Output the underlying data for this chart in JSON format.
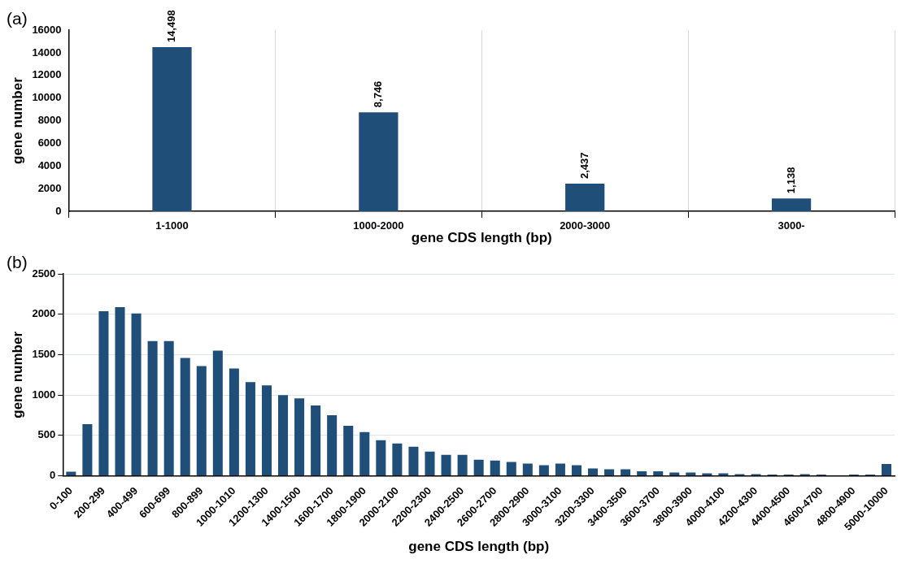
{
  "chart_data": [
    {
      "type": "bar",
      "title": "(a)",
      "xlabel": "gene CDS length (bp)",
      "ylabel": "gene number",
      "categories": [
        "1-1000",
        "1000-2000",
        "2000-3000",
        "3000-"
      ],
      "series": [
        {
          "color": "#1f4e79",
          "values": [
            14498,
            8746,
            2437,
            1138
          ],
          "value_labels": [
            "14,498",
            "8,746",
            "2,437",
            "1,138"
          ]
        }
      ],
      "ylim": [
        0,
        16000
      ],
      "yticks": [
        0,
        2000,
        4000,
        6000,
        8000,
        10000,
        12000,
        14000,
        16000
      ],
      "grid": "x",
      "legend": false
    },
    {
      "type": "bar",
      "title": "(b)",
      "xlabel": "gene CDS length (bp)",
      "ylabel": "gene number",
      "categories": [
        "0-100",
        null,
        "200-299",
        null,
        "400-499",
        null,
        "600-699",
        null,
        "800-899",
        null,
        "1000-1010",
        null,
        "1200-1300",
        null,
        "1400-1500",
        null,
        "1600-1700",
        null,
        "1800-1900",
        null,
        "2000-2100",
        null,
        "2200-2300",
        null,
        "2400-2500",
        null,
        "2600-2700",
        null,
        "2800-2900",
        null,
        "3000-3100",
        null,
        "3200-3300",
        null,
        "3400-3500",
        null,
        "3600-3700",
        null,
        "3800-3900",
        null,
        "4000-4100",
        null,
        "4200-4300",
        null,
        "4400-4500",
        null,
        "4600-4700",
        null,
        "4800-4900",
        null,
        "5000-10000"
      ],
      "series": [
        {
          "color": "#1f4e79",
          "values": [
            50,
            640,
            2040,
            2090,
            2010,
            1670,
            1670,
            1460,
            1360,
            1550,
            1330,
            1160,
            1120,
            1000,
            960,
            870,
            750,
            620,
            540,
            440,
            400,
            360,
            300,
            260,
            260,
            200,
            190,
            170,
            150,
            130,
            150,
            130,
            90,
            80,
            80,
            55,
            55,
            40,
            40,
            30,
            30,
            20,
            20,
            15,
            15,
            20,
            15,
            5,
            15,
            15,
            145
          ]
        }
      ],
      "ylim": [
        0,
        2500
      ],
      "yticks": [
        0,
        500,
        1000,
        1500,
        2000,
        2500
      ],
      "grid": "y",
      "legend": false
    }
  ]
}
